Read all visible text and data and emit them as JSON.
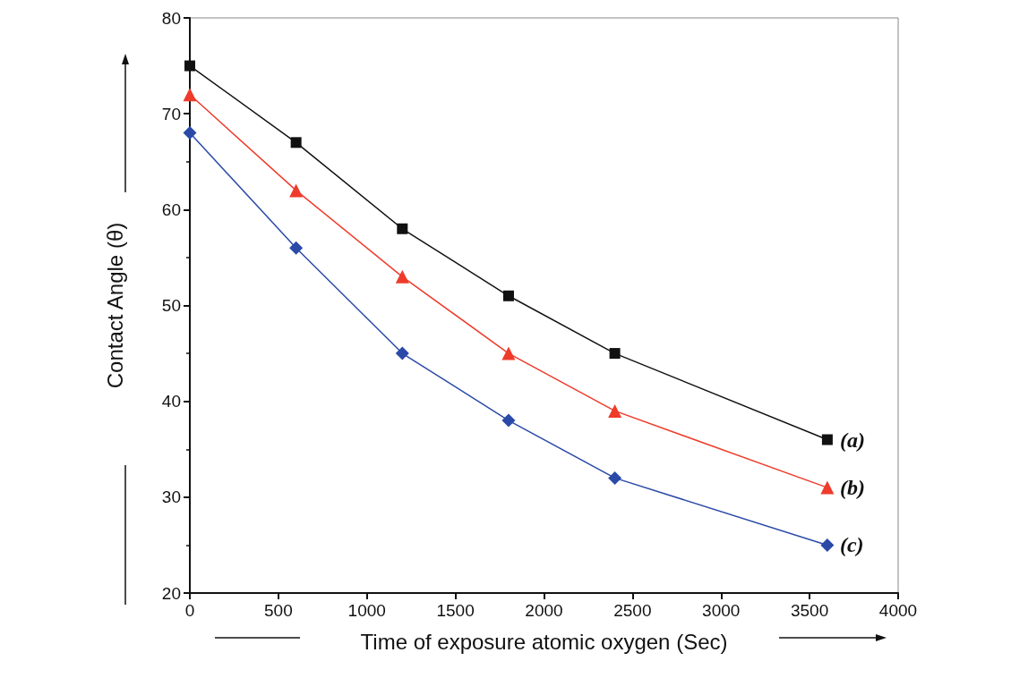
{
  "chart_data": {
    "type": "line",
    "xlabel": "Time of exposure atomic oxygen (Sec)",
    "ylabel": "Contact Angle (θ)",
    "x": [
      0,
      600,
      1200,
      1800,
      2400,
      3600
    ],
    "series": [
      {
        "name": "(a)",
        "color": "#111111",
        "marker": "square",
        "values": [
          75,
          67,
          58,
          51,
          45,
          36
        ]
      },
      {
        "name": "(b)",
        "color": "#ee3b2b",
        "marker": "triangle",
        "values": [
          72,
          62,
          53,
          45,
          39,
          31
        ]
      },
      {
        "name": "(c)",
        "color": "#2b4aa8",
        "marker": "diamond",
        "values": [
          68,
          56,
          45,
          38,
          32,
          25
        ]
      }
    ],
    "xlim": [
      0,
      4000
    ],
    "xticks": [
      0,
      500,
      1000,
      1500,
      2000,
      2500,
      3000,
      3500,
      4000
    ],
    "ylim": [
      20,
      80
    ],
    "yticks": [
      20,
      30,
      40,
      50,
      60,
      70,
      80
    ],
    "grid": false,
    "legend": false
  }
}
